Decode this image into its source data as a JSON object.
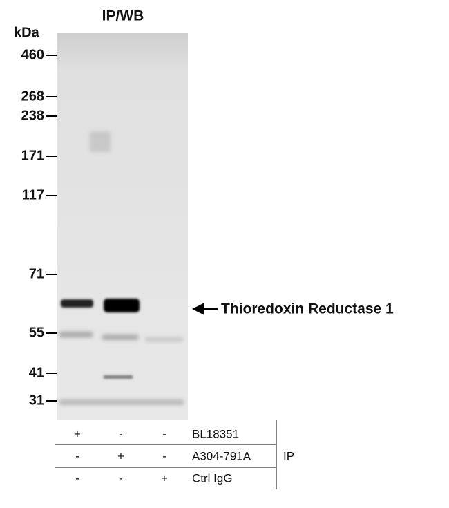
{
  "title": "IP/WB",
  "unit": "kDa",
  "markers": [
    460,
    268,
    238,
    171,
    117,
    71,
    55,
    41,
    31
  ],
  "band_label": "Thioredoxin Reductase 1",
  "lanes": {
    "rows": [
      {
        "signs": [
          "+",
          "-",
          "-"
        ],
        "label": "BL18351"
      },
      {
        "signs": [
          "-",
          "+",
          "-"
        ],
        "label": "A304-791A"
      },
      {
        "signs": [
          "-",
          "-",
          "+"
        ],
        "label": "Ctrl IgG"
      }
    ],
    "group_label": "IP"
  }
}
